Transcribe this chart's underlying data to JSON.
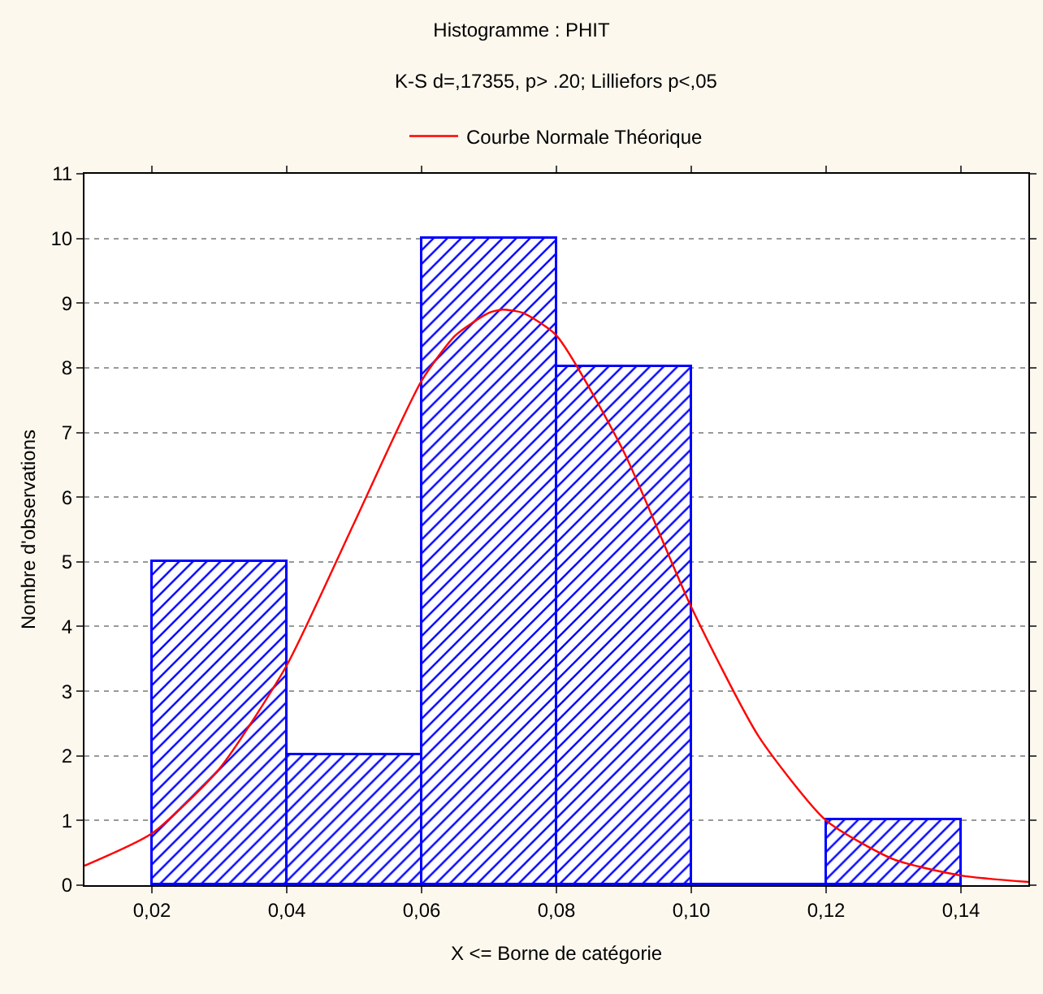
{
  "chart_data": {
    "type": "histogram",
    "title": "Histogramme : PHIT",
    "subtitle": "K-S d=,17355, p> .20; Lilliefors p<,05",
    "xlabel": "X <= Borne de catégorie",
    "ylabel": "Nombre d'observations",
    "bins": [
      0.02,
      0.04,
      0.06,
      0.08,
      0.1,
      0.12,
      0.14
    ],
    "values": [
      5,
      2,
      10,
      8,
      0,
      1
    ],
    "color": "#0000ff",
    "series": [
      {
        "name": "Courbe Normale Théorique",
        "type": "line",
        "color": "#ff0000",
        "x": [
          0.01,
          0.02,
          0.03,
          0.04,
          0.05,
          0.06,
          0.065,
          0.07,
          0.072,
          0.075,
          0.08,
          0.09,
          0.1,
          0.11,
          0.12,
          0.13,
          0.14,
          0.15
        ],
        "values": [
          0.3,
          0.8,
          1.8,
          3.4,
          5.6,
          7.8,
          8.5,
          8.85,
          8.9,
          8.85,
          8.5,
          6.7,
          4.3,
          2.3,
          1.0,
          0.4,
          0.15,
          0.05
        ]
      }
    ],
    "xlim": [
      0.01,
      0.15
    ],
    "xticks": [
      {
        "value": 0.02,
        "label": "0,02"
      },
      {
        "value": 0.04,
        "label": "0,04"
      },
      {
        "value": 0.06,
        "label": "0,06"
      },
      {
        "value": 0.08,
        "label": "0,08"
      },
      {
        "value": 0.1,
        "label": "0,10"
      },
      {
        "value": 0.12,
        "label": "0,12"
      },
      {
        "value": 0.14,
        "label": "0,14"
      }
    ],
    "ylim": [
      0,
      11
    ],
    "yticks": [
      0,
      1,
      2,
      3,
      4,
      5,
      6,
      7,
      8,
      9,
      10,
      11
    ],
    "grid": "y",
    "legend": "top",
    "line_style": "solid",
    "marker": "none"
  }
}
